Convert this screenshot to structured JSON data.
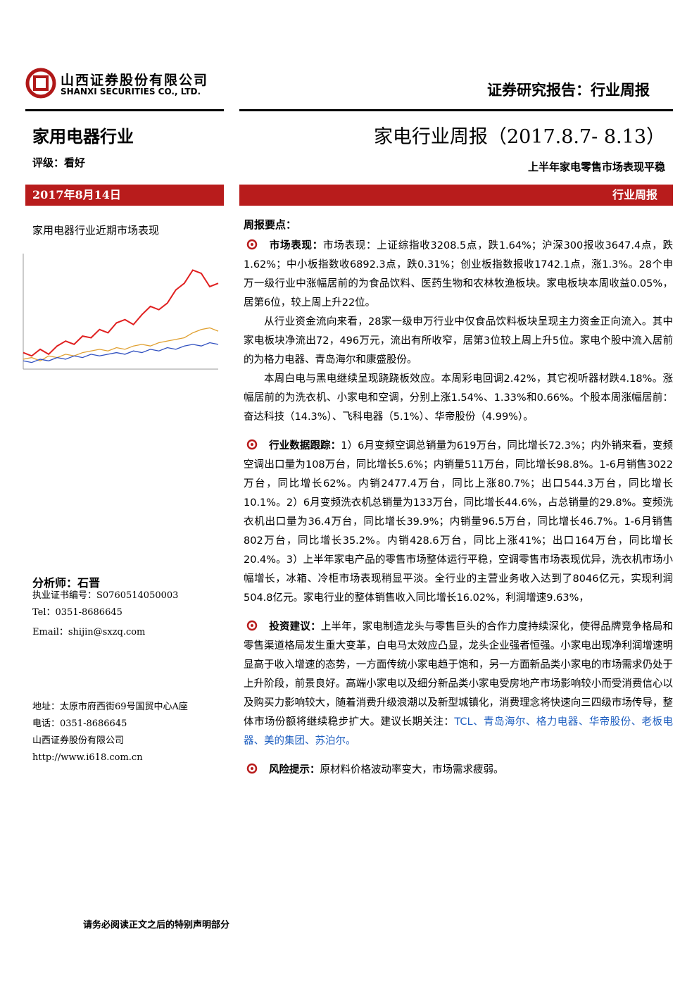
{
  "header": {
    "company_cn": "山西证券股份有限公司",
    "company_en": "SHANXI SECURITIES CO., LTD.",
    "report_type": "证券研究报告：行业周报"
  },
  "industry": "家用电器行业",
  "title": "家电行业周报（2017.8.7- 8.13）",
  "rating": "评级：看好",
  "subtitle": "上半年家电零售市场表现平稳",
  "date": "2017年8月14日",
  "tag": "行业周报",
  "sidebar": {
    "chart_title": "家用电器行业近期市场表现",
    "analyst": "分析师：石晋",
    "license": "执业证书编号：S0760514050003",
    "tel": "Tel：0351-8686645",
    "email": "Email：shijin@sxzq.com",
    "address": [
      "地址：太原市府西街69号国贸中心A座",
      "电话：0351-8686645",
      "山西证券股份有限公司",
      "http://www.i618.com.cn"
    ]
  },
  "chart_data": {
    "type": "line",
    "ylim": [
      0,
      70
    ],
    "series": [
      {
        "color": "#e02020",
        "values": [
          10,
          8,
          12,
          9,
          14,
          17,
          15,
          20,
          19,
          24,
          22,
          28,
          30,
          27,
          33,
          38,
          36,
          40,
          48,
          52,
          60,
          58,
          50,
          52
        ]
      },
      {
        "color": "#e0a030",
        "values": [
          6,
          7,
          5,
          8,
          7,
          9,
          8,
          10,
          11,
          12,
          11,
          13,
          12,
          14,
          15,
          14,
          16,
          17,
          18,
          19,
          22,
          24,
          25,
          23
        ]
      },
      {
        "color": "#3050c0",
        "values": [
          5,
          4,
          6,
          5,
          7,
          6,
          8,
          7,
          9,
          8,
          9,
          10,
          9,
          11,
          10,
          12,
          11,
          13,
          12,
          14,
          15,
          14,
          16,
          15
        ]
      }
    ]
  },
  "summary": {
    "heading": "周报要点：",
    "sections": [
      {
        "label": "市场表现：",
        "paragraphs": [
          "市场表现：上证综指收3208.5点，跌1.64%；沪深300报收3647.4点，跌1.62%；中小板指数收6892.3点，跌0.31%；创业板指数报收1742.1点，涨1.3%。28个申万一级行业中涨幅居前的为食品饮料、医药生物和农林牧渔板块。家电板块本周收益0.05%，居第6位，较上周上升22位。",
          "从行业资金流向来看，28家一级申万行业中仅食品饮料板块呈现主力资金正向流入。其中家电板块净流出72，496万元，流出有所收窄，居第3位较上周上升5位。家电个股中流入居前的为格力电器、青岛海尔和康盛股份。",
          "本周白电与黑电继续呈现跷跷板效应。本周彩电回调2.42%，其它视听器材跌4.18%。涨幅居前的为洗衣机、小家电和空调，分别上涨1.54%、1.33%和0.66%。个股本周涨幅居前：奋达科技（14.3%）、飞科电器（5.1%）、华帝股份（4.99%）。"
        ]
      },
      {
        "label": "行业数据跟踪：",
        "paragraphs": [
          "1）6月变频空调总销量为619万台，同比增长72.3%；内外销来看，变频空调出口量为108万台，同比增长5.6%；内销量511万台，同比增长98.8%。1-6月销售3022万台，同比增长62%。内销2477.4万台，同比上涨80.7%；出口544.3万台，同比增长10.1%。2）6月变频洗衣机总销量为133万台，同比增长44.6%，占总销量的29.8%。变频洗衣机出口量为36.4万台，同比增长39.9%；内销量96.5万台，同比增长46.7%。1-6月销售802万台，同比增长35.2%。内销428.6万台，同比上涨41%；出口164万台，同比增长20.4%。3）上半年家电产品的零售市场整体运行平稳，空调零售市场表现优异，洗衣机市场小幅增长，冰箱、冷柜市场表现稍显平淡。全行业的主营业务收入达到了8046亿元，实现利润504.8亿元。家电行业的整体销售收入同比增长16.02%，利润增速9.63%，"
        ]
      },
      {
        "label": "投资建议：",
        "paragraphs": [
          "上半年，家电制造龙头与零售巨头的合作力度持续深化，使得品牌竞争格局和零售渠道格局发生重大变革，白电马太效应凸显，龙头企业强者恒强。小家电出现净利润增速明显高于收入增速的态势，一方面传统小家电趋于饱和，另一方面新品类小家电的市场需求仍处于上升阶段，前景良好。高端小家电以及细分新品类小家电受房地产市场影响较小而受消费信心以及购买力影响较大，随着消费升级浪潮以及新型城镇化，消费理念将快速向三四级市场传导，整体市场份额将继续稳步扩大。建议长期关注："
        ],
        "links": "TCL、青岛海尔、格力电器、华帝股份、老板电器、美的集团、苏泊尔。"
      },
      {
        "label": "风险提示：",
        "paragraphs": [
          "原材料价格波动率变大，市场需求疲弱。"
        ]
      }
    ]
  },
  "footer": "请务必阅读正文之后的特别声明部分"
}
